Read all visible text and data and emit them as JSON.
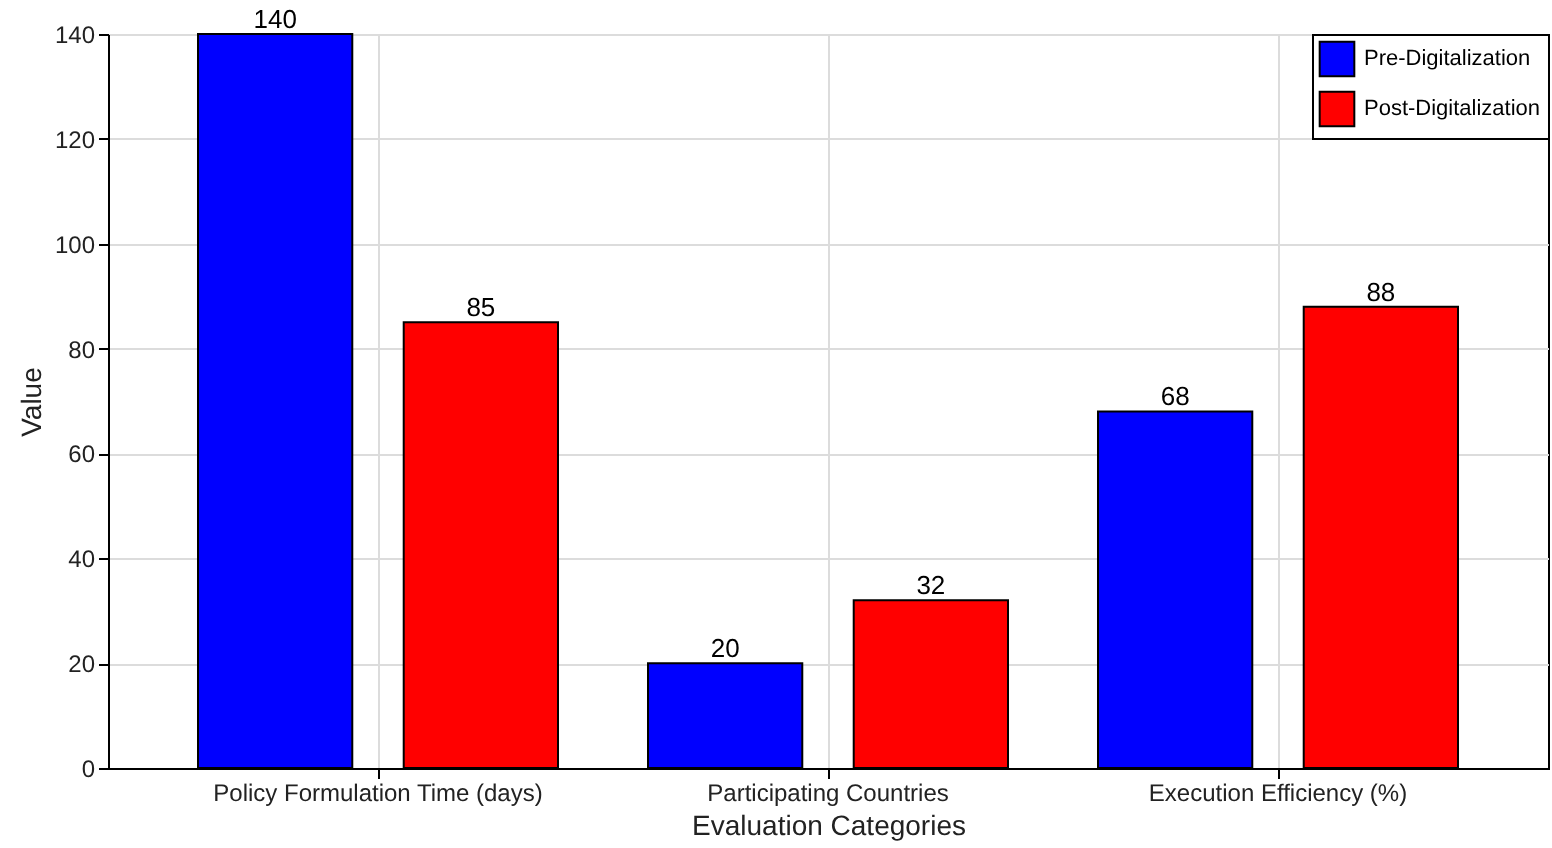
{
  "chart_data": {
    "type": "bar",
    "xlabel": "Evaluation Categories",
    "ylabel": "Value",
    "categories": [
      "Policy Formulation Time (days)",
      "Participating Countries",
      "Execution Efficiency (%)"
    ],
    "series": [
      {
        "name": "Pre-Digitalization",
        "color": "#0000ff",
        "values": [
          140,
          20,
          68
        ]
      },
      {
        "name": "Post-Digitalization",
        "color": "#ff0000",
        "values": [
          85,
          32,
          88
        ]
      }
    ],
    "ylim": [
      0,
      140
    ],
    "yticks": [
      0,
      20,
      40,
      60,
      80,
      100,
      120,
      140
    ],
    "grid": true,
    "legend": "top right",
    "data_labels": true
  }
}
